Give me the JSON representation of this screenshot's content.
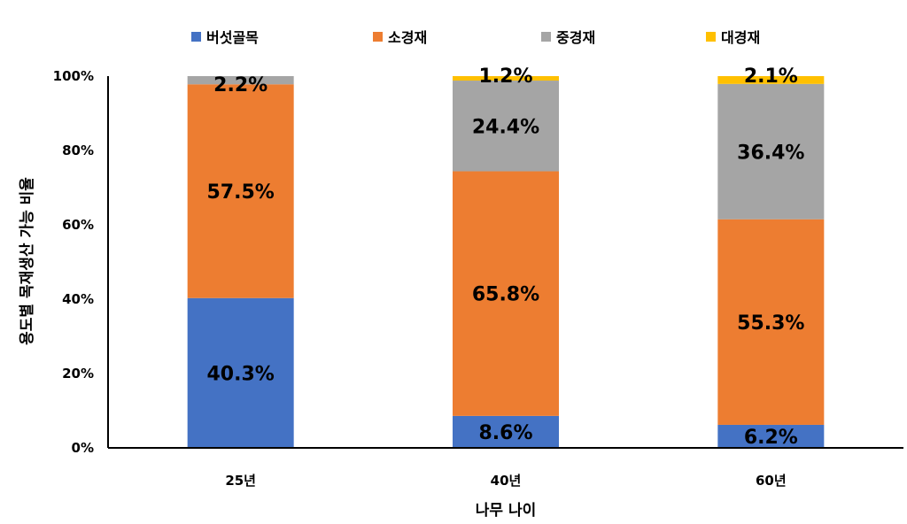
{
  "chart_data": {
    "type": "bar",
    "stacked": true,
    "categories": [
      "25년",
      "40년",
      "60년"
    ],
    "series": [
      {
        "name": "버섯골목",
        "color": "#4472C4",
        "values": [
          40.3,
          8.6,
          6.2
        ]
      },
      {
        "name": "소경재",
        "color": "#ED7D31",
        "values": [
          57.5,
          65.8,
          55.3
        ]
      },
      {
        "name": "중경재",
        "color": "#A5A5A5",
        "values": [
          2.2,
          24.4,
          36.4
        ]
      },
      {
        "name": "대경재",
        "color": "#FFC000",
        "values": [
          0.0,
          1.2,
          2.1
        ]
      }
    ],
    "labels": [
      [
        "40.3%",
        "8.6%",
        "6.2%"
      ],
      [
        "57.5%",
        "65.8%",
        "55.3%"
      ],
      [
        "2.2%",
        "24.4%",
        "36.4%"
      ],
      [
        "",
        "1.2%",
        "2.1%"
      ]
    ],
    "yticks": [
      0,
      20,
      40,
      60,
      80,
      100
    ],
    "ytick_labels": [
      "0%",
      "20%",
      "40%",
      "60%",
      "80%",
      "100%"
    ],
    "ylim": [
      0,
      100
    ],
    "xlabel": "나무 나이",
    "ylabel": "용도별 목재생산 가능 비율",
    "legend_position": "top",
    "grid": false
  }
}
